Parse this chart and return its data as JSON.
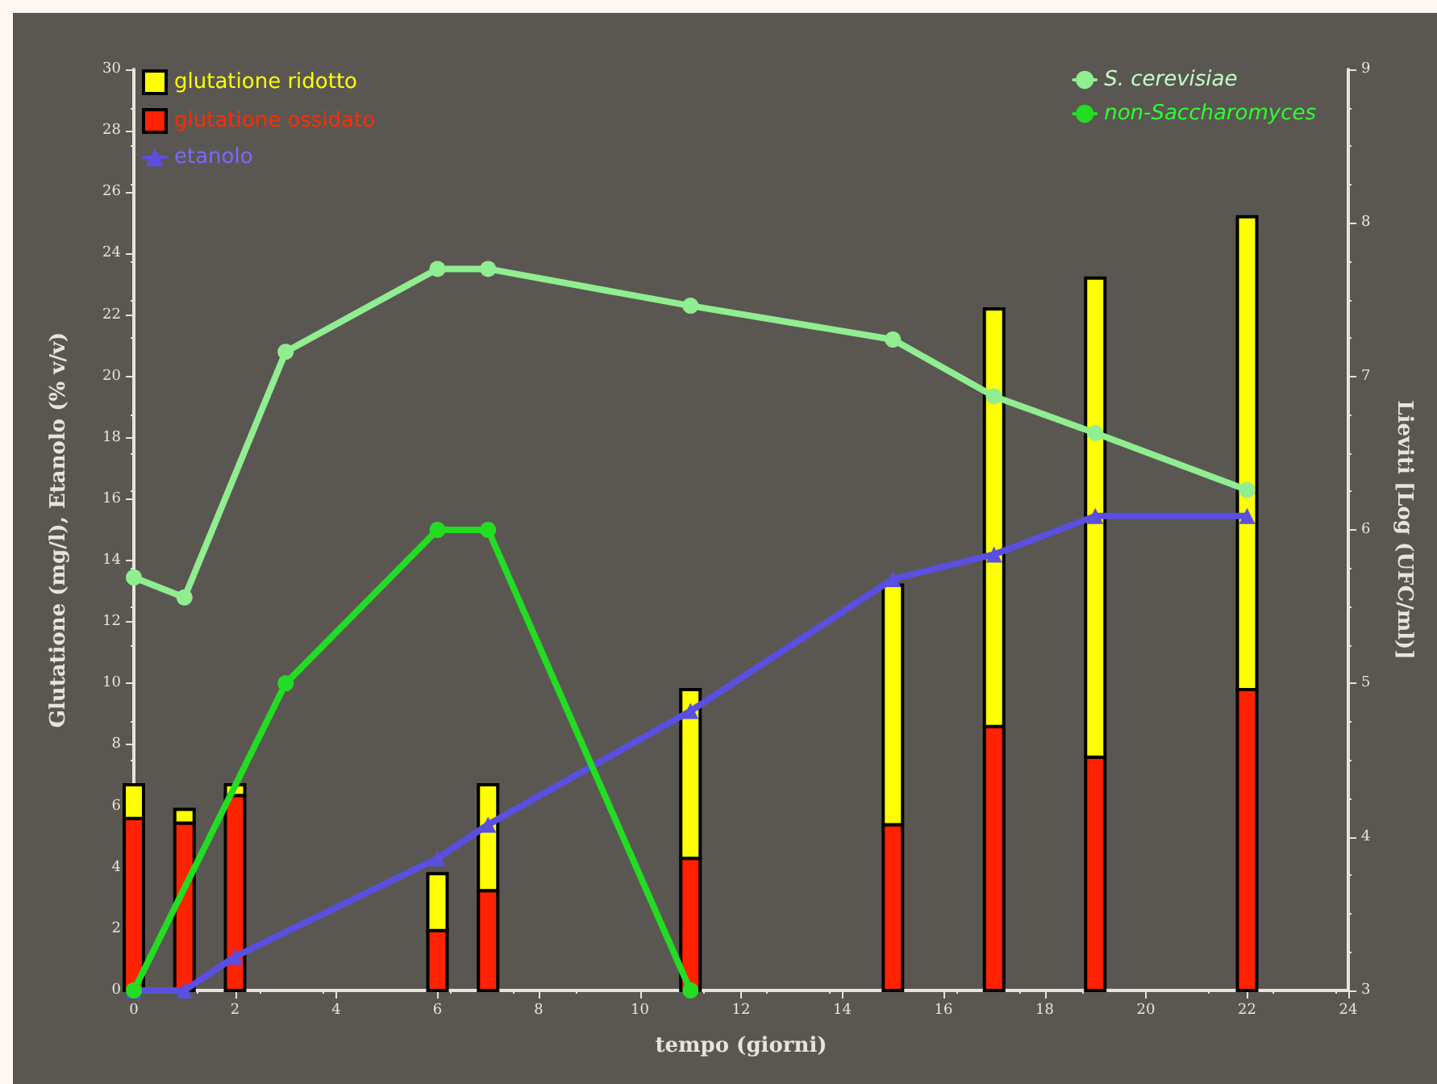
{
  "chart_data": {
    "type": "bar",
    "xlabel": "tempo (giorni)",
    "ylabel": "Glutatione (mg/l), Etanolo (% v/v)",
    "y2label": "Lieviti [Log (UFC/ml)]",
    "x": [
      0,
      1,
      2,
      6,
      7,
      11,
      15,
      17,
      19,
      22
    ],
    "stacked": true,
    "series": [
      {
        "name": "glutatione ossidato",
        "color": "#ff2200",
        "values": [
          5.6,
          5.45,
          6.35,
          1.95,
          3.25,
          4.3,
          5.4,
          8.6,
          7.6,
          9.8
        ]
      },
      {
        "name": "glutatione ridotto",
        "color": "#ffff00",
        "values": [
          1.1,
          0.45,
          0.35,
          1.85,
          3.45,
          5.5,
          7.8,
          13.6,
          15.6,
          15.4
        ]
      },
      {
        "name": "etanolo",
        "type": "line",
        "color": "#5a4fe0",
        "marker": "triangle",
        "x": [
          0,
          1,
          2,
          6,
          7,
          11,
          15,
          17,
          19,
          22
        ],
        "values": [
          0,
          0,
          1.1,
          4.3,
          5.4,
          9.1,
          13.4,
          14.2,
          15.45,
          15.45
        ]
      },
      {
        "name": "S. cerevisiae",
        "type": "line",
        "axis": "y2",
        "color": "#90ee90",
        "marker": "circle",
        "x": [
          0,
          1,
          3,
          6,
          7,
          11,
          15,
          17,
          19,
          22
        ],
        "values": [
          5.69,
          5.56,
          7.16,
          7.7,
          7.7,
          7.46,
          7.24,
          6.87,
          6.63,
          6.26
        ]
      },
      {
        "name": "non-Saccharomyces",
        "type": "line",
        "axis": "y2",
        "color": "#22dd22",
        "marker": "circle",
        "x": [
          0,
          3,
          6,
          7,
          11
        ],
        "values": [
          3,
          5.0,
          6.0,
          6.0,
          3
        ]
      }
    ],
    "xlim": [
      0,
      24
    ],
    "xticks": [
      0,
      2,
      4,
      6,
      8,
      10,
      12,
      14,
      16,
      18,
      20,
      22,
      24
    ],
    "ylim": [
      0,
      30
    ],
    "yticks": [
      0,
      2,
      4,
      6,
      8,
      10,
      12,
      14,
      16,
      18,
      20,
      22,
      24,
      26,
      28,
      30
    ],
    "y2lim": [
      3,
      9
    ],
    "y2ticks": [
      3,
      4,
      5,
      6,
      7,
      8,
      9
    ],
    "legend": "top",
    "grid": false
  }
}
